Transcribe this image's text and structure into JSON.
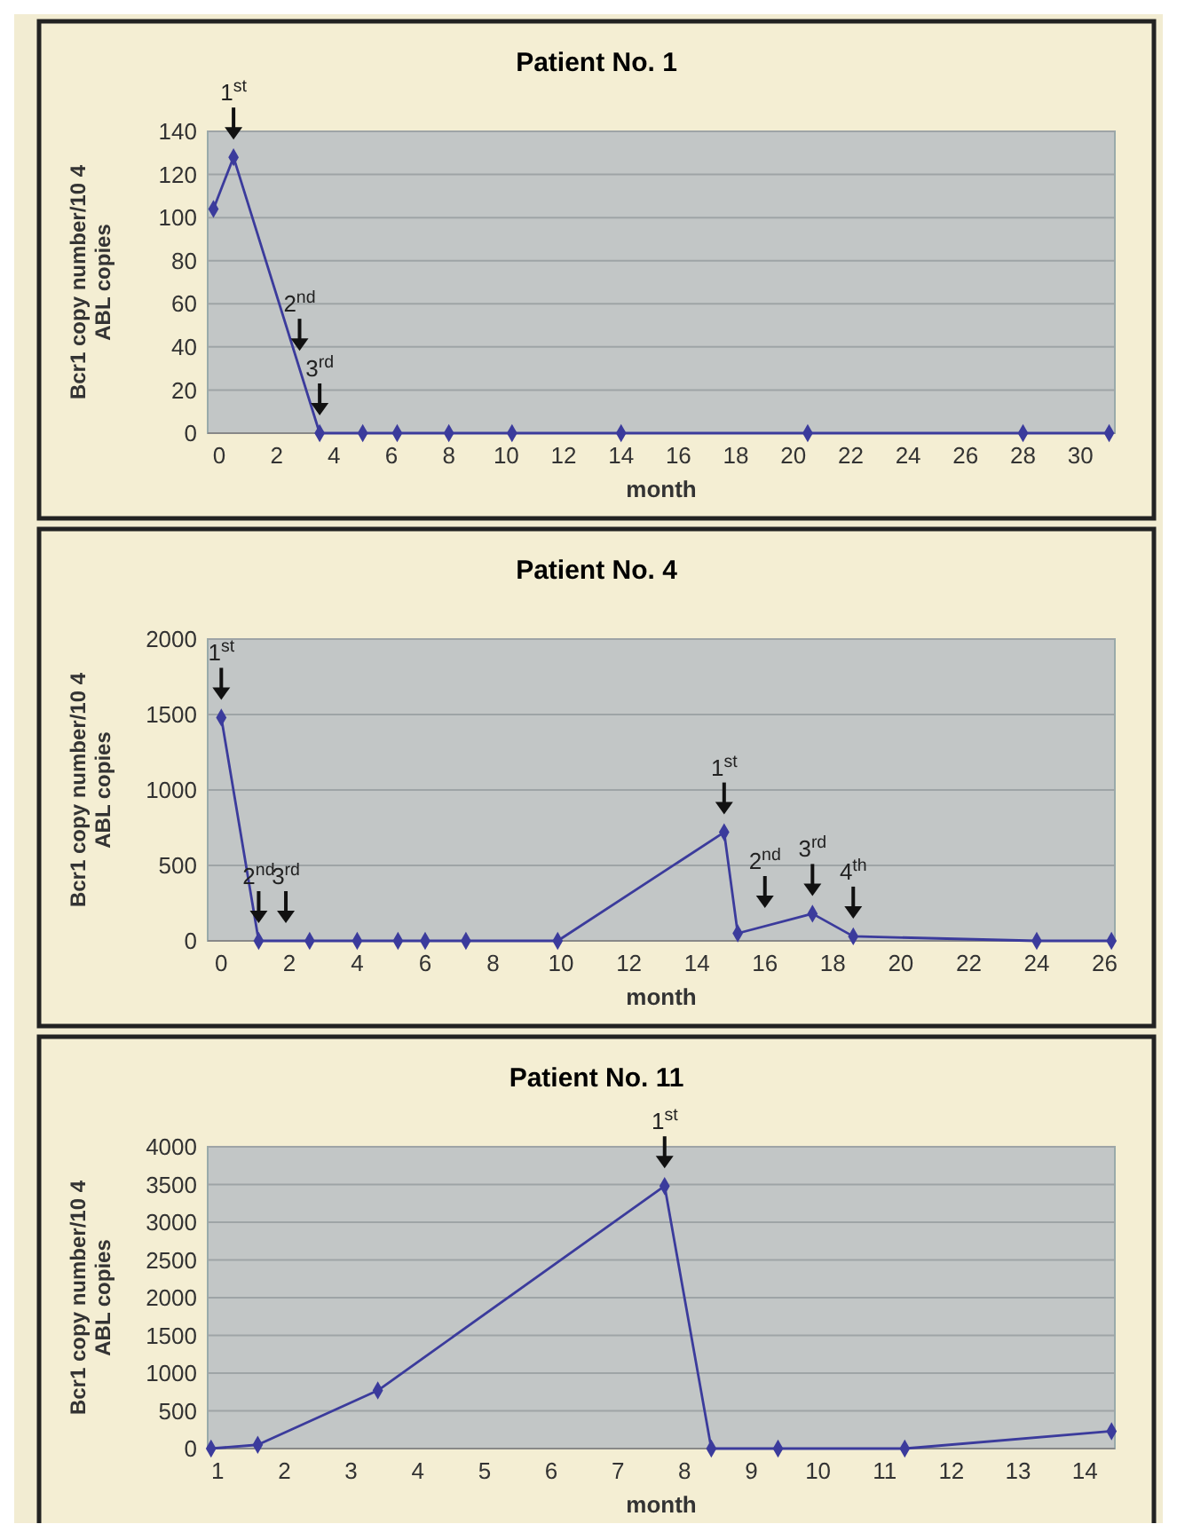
{
  "chart_data": [
    {
      "type": "line",
      "title": "Patient No. 1",
      "xlabel": "month",
      "ylabel": "Bcr1 copy number/10 4 ABL copies",
      "x": [
        -0.2,
        0.5,
        3.5,
        5,
        6.2,
        8,
        10.2,
        14,
        20.5,
        28,
        31
      ],
      "values": [
        104,
        128,
        0,
        0,
        0,
        0,
        0,
        0,
        0,
        0,
        0
      ],
      "color": "#3b3b9c",
      "xlim": [
        -0.4,
        31.2
      ],
      "xticks": [
        0,
        2,
        4,
        6,
        8,
        10,
        12,
        14,
        16,
        18,
        20,
        22,
        24,
        26,
        28,
        30
      ],
      "ylim": [
        0,
        140
      ],
      "yticks": [
        0,
        20,
        40,
        60,
        80,
        100,
        120,
        140
      ],
      "grid": "y",
      "marker": "diamond",
      "line_style": "solid",
      "annotations": [
        {
          "text": "1$^{st}$",
          "x": 0.5,
          "y": 128
        },
        {
          "text": "2$^{nd}$",
          "x": 2.8,
          "y": 30
        },
        {
          "text": "3$^{rd}$",
          "x": 3.5,
          "y": 0
        }
      ]
    },
    {
      "type": "line",
      "title": "Patient No. 4",
      "xlabel": "month",
      "ylabel": "Bcr1 copy number/10 4 ABL copies",
      "x": [
        0,
        1.1,
        2.6,
        4,
        5.2,
        6,
        7.2,
        9.9,
        14.8,
        15.2,
        17.4,
        18.6,
        24,
        26.2
      ],
      "values": [
        1480,
        0,
        0,
        0,
        0,
        0,
        0,
        0,
        720,
        50,
        180,
        30,
        0,
        0
      ],
      "color": "#3b3b9c",
      "xlim": [
        -0.4,
        26.3
      ],
      "xticks": [
        0,
        2,
        4,
        6,
        8,
        10,
        12,
        14,
        16,
        18,
        20,
        22,
        24,
        26
      ],
      "ylim": [
        0,
        2000
      ],
      "yticks": [
        0,
        500,
        1000,
        1500,
        2000
      ],
      "grid": "y",
      "marker": "diamond",
      "line_style": "solid",
      "annotations": [
        {
          "text": "1$^{st}$",
          "x": 0,
          "y": 1480
        },
        {
          "text": "2$^{nd}$",
          "x": 1.1,
          "y": 0
        },
        {
          "text": "3$^{rd}$",
          "x": 1.9,
          "y": 0
        },
        {
          "text": "1$^{st}$",
          "x": 14.8,
          "y": 720
        },
        {
          "text": "2$^{nd}$",
          "x": 16,
          "y": 100
        },
        {
          "text": "3$^{rd}$",
          "x": 17.4,
          "y": 180
        },
        {
          "text": "4$^{th}$",
          "x": 18.6,
          "y": 30
        }
      ]
    },
    {
      "type": "line",
      "title": "Patient No. 11",
      "xlabel": "month",
      "ylabel": "Bcr1 copy number/10 4 ABL copies",
      "x": [
        0.9,
        1.6,
        3.4,
        7.7,
        8.4,
        9.4,
        11.3,
        14.4
      ],
      "values": [
        0,
        50,
        770,
        3480,
        0,
        0,
        0,
        230
      ],
      "color": "#3b3b9c",
      "xlim": [
        0.85,
        14.45
      ],
      "xticks": [
        1,
        2,
        3,
        4,
        5,
        6,
        7,
        8,
        9,
        10,
        11,
        12,
        13,
        14
      ],
      "ylim": [
        0,
        4000
      ],
      "yticks": [
        0,
        500,
        1000,
        1500,
        2000,
        2500,
        3000,
        3500,
        4000
      ],
      "grid": "y",
      "marker": "diamond",
      "line_style": "solid",
      "annotations": [
        {
          "text": "1$^{st}$",
          "x": 7.7,
          "y": 3480
        }
      ]
    }
  ]
}
